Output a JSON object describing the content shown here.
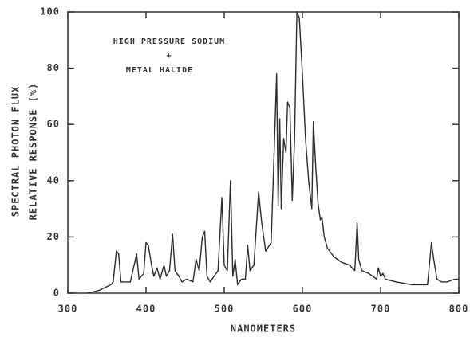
{
  "chart_data": {
    "type": "line",
    "annotation": [
      "HIGH PRESSURE SODIUM",
      "+",
      "METAL HALIDE"
    ],
    "ylabel": [
      "SPECTRAL PHOTON FLUX",
      "RELATIVE RESPONSE (%)"
    ],
    "xlabel": "NANOMETERS",
    "xlim": [
      300,
      800
    ],
    "xticks": [
      300,
      400,
      500,
      600,
      700,
      800
    ],
    "ylim": [
      0,
      100
    ],
    "yticks": [
      0,
      20,
      40,
      60,
      80,
      100
    ],
    "series": [
      {
        "color": "#2b2b2b",
        "x": [
          325,
          340,
          355,
          358,
          362,
          365,
          368,
          380,
          388,
          391,
          397,
          400,
          403,
          407,
          410,
          414,
          418,
          423,
          426,
          430,
          434,
          437,
          442,
          446,
          452,
          460,
          464,
          468,
          472,
          475,
          478,
          482,
          487,
          492,
          497,
          500,
          504,
          508,
          511,
          514,
          517,
          522,
          527,
          530,
          533,
          538,
          544,
          548,
          553,
          560,
          565,
          567,
          569,
          571,
          573,
          576,
          579,
          581,
          584,
          587,
          590,
          593,
          596,
          600,
          604,
          608,
          612,
          614,
          617,
          620,
          623,
          625,
          628,
          632,
          640,
          650,
          660,
          667,
          670,
          672,
          676,
          685,
          695,
          697,
          700,
          703,
          706,
          720,
          740,
          760,
          765,
          768,
          772,
          778,
          785,
          795,
          800
        ],
        "values": [
          0,
          1,
          3,
          4,
          15,
          14,
          4,
          4,
          14,
          5,
          7,
          18,
          17,
          10,
          6,
          9,
          5,
          10,
          6,
          8,
          21,
          8,
          6,
          4,
          5,
          4,
          12,
          8,
          20,
          22,
          6,
          4,
          6,
          8,
          34,
          10,
          8,
          40,
          6,
          12,
          3,
          5,
          5,
          17,
          8,
          10,
          36,
          25,
          15,
          18,
          60,
          78,
          31,
          62,
          30,
          55,
          50,
          68,
          66,
          33,
          55,
          100,
          98,
          78,
          55,
          40,
          30,
          61,
          45,
          32,
          26,
          27,
          20,
          16,
          13,
          11,
          10,
          8,
          25,
          12,
          8,
          7,
          5,
          9,
          6,
          7,
          5,
          4,
          3,
          3,
          18,
          12,
          5,
          4,
          4,
          5,
          5
        ]
      }
    ]
  }
}
